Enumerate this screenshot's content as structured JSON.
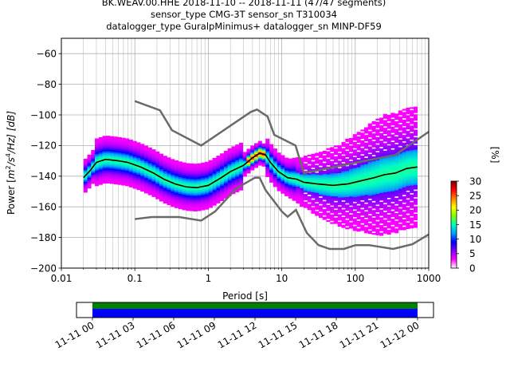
{
  "chart_data": {
    "type": "heatmap",
    "title_lines": [
      "BK.WEAV.00.HHE   2018-11-10 -- 2018-11-11  (47/47 segments)",
      "sensor_type CMG-3T sensor_sn T310034",
      "datalogger_type GuralpMinimus+ datalogger_sn MINP-DF59"
    ],
    "xlabel": "Period [s]",
    "ylabel_parts": {
      "pre": "Power [",
      "m": "m",
      "e1": "2",
      "mid": "/s",
      "e2": "4",
      "post": "/Hz] [dB]"
    },
    "xscale": "log",
    "xlim": [
      0.01,
      1000
    ],
    "ylim": [
      -200,
      -50
    ],
    "x_ticks": [
      {
        "v": 0.01,
        "label": "0.01"
      },
      {
        "v": 0.1,
        "label": "0.1"
      },
      {
        "v": 1,
        "label": "1"
      },
      {
        "v": 10,
        "label": "10"
      },
      {
        "v": 100,
        "label": "100"
      },
      {
        "v": 1000,
        "label": "1000"
      }
    ],
    "y_ticks": [
      {
        "v": -60,
        "label": "−60"
      },
      {
        "v": -80,
        "label": "−80"
      },
      {
        "v": -100,
        "label": "−100"
      },
      {
        "v": -120,
        "label": "−120"
      },
      {
        "v": -140,
        "label": "−140"
      },
      {
        "v": -160,
        "label": "−160"
      },
      {
        "v": -180,
        "label": "−180"
      },
      {
        "v": -200,
        "label": "−200"
      }
    ],
    "grid": true,
    "noise_model_color": "#6a6a6a",
    "mean_color": "#000000",
    "new_high_noise_model": [
      [
        0.1,
        -91
      ],
      [
        0.22,
        -97
      ],
      [
        0.32,
        -110
      ],
      [
        0.8,
        -120
      ],
      [
        3.8,
        -98
      ],
      [
        4.6,
        -96.5
      ],
      [
        6.4,
        -101
      ],
      [
        7.9,
        -113
      ],
      [
        15.4,
        -120
      ],
      [
        20,
        -138
      ],
      [
        354,
        -126
      ],
      [
        1000,
        -111
      ]
    ],
    "new_low_noise_model": [
      [
        0.1,
        -168
      ],
      [
        0.17,
        -166.7
      ],
      [
        0.4,
        -166.7
      ],
      [
        0.8,
        -169
      ],
      [
        1.24,
        -163
      ],
      [
        2.4,
        -148
      ],
      [
        4.3,
        -141
      ],
      [
        5,
        -141
      ],
      [
        6,
        -149
      ],
      [
        10,
        -163
      ],
      [
        12,
        -166.5
      ],
      [
        15.6,
        -162
      ],
      [
        21.9,
        -177
      ],
      [
        31.6,
        -185
      ],
      [
        45,
        -187.5
      ],
      [
        70,
        -187.5
      ],
      [
        101,
        -185
      ],
      [
        154,
        -185
      ],
      [
        328,
        -187.5
      ],
      [
        600,
        -184.4
      ],
      [
        1000,
        -178
      ]
    ],
    "mean_curve": [
      [
        0.02,
        -141
      ],
      [
        0.025,
        -136
      ],
      [
        0.03,
        -131
      ],
      [
        0.04,
        -129
      ],
      [
        0.06,
        -130
      ],
      [
        0.08,
        -131
      ],
      [
        0.12,
        -134
      ],
      [
        0.18,
        -138
      ],
      [
        0.25,
        -142
      ],
      [
        0.35,
        -145
      ],
      [
        0.5,
        -147
      ],
      [
        0.7,
        -147.5
      ],
      [
        1,
        -146
      ],
      [
        1.5,
        -141
      ],
      [
        2,
        -137
      ],
      [
        3,
        -133
      ],
      [
        4,
        -128
      ],
      [
        5,
        -125
      ],
      [
        6,
        -126
      ],
      [
        7,
        -131
      ],
      [
        9,
        -137
      ],
      [
        12,
        -141
      ],
      [
        16,
        -142
      ],
      [
        20,
        -144
      ],
      [
        30,
        -145
      ],
      [
        50,
        -146
      ],
      [
        80,
        -145
      ],
      [
        120,
        -143
      ],
      [
        180,
        -141
      ],
      [
        250,
        -139
      ],
      [
        350,
        -138
      ],
      [
        500,
        -135
      ],
      [
        700,
        -134
      ]
    ],
    "density_colormap_stops": [
      "#ffffff",
      "#ff00ff",
      "#7f00ff",
      "#0000ff",
      "#00a0ff",
      "#00ffc0",
      "#80ff00",
      "#ffff00",
      "#ff8000",
      "#ff0000",
      "#800000"
    ],
    "colorbar": {
      "label": "[%]",
      "range": [
        0,
        30
      ],
      "ticks": [
        {
          "v": 0,
          "label": "0"
        },
        {
          "v": 5,
          "label": "5"
        },
        {
          "v": 10,
          "label": "10"
        },
        {
          "v": 15,
          "label": "15"
        },
        {
          "v": 20,
          "label": "20"
        },
        {
          "v": 25,
          "label": "25"
        },
        {
          "v": 30,
          "label": "30"
        }
      ]
    },
    "timeline": {
      "tick_labels": [
        "11-11 00",
        "11-11 03",
        "11-11 06",
        "11-11 09",
        "11-11 12",
        "11-11 15",
        "11-11 18",
        "11-11 21",
        "11-12 00"
      ],
      "bar_colors": [
        "#008000",
        "#0000ff"
      ],
      "coverage_hours": [
        0,
        24
      ]
    }
  }
}
